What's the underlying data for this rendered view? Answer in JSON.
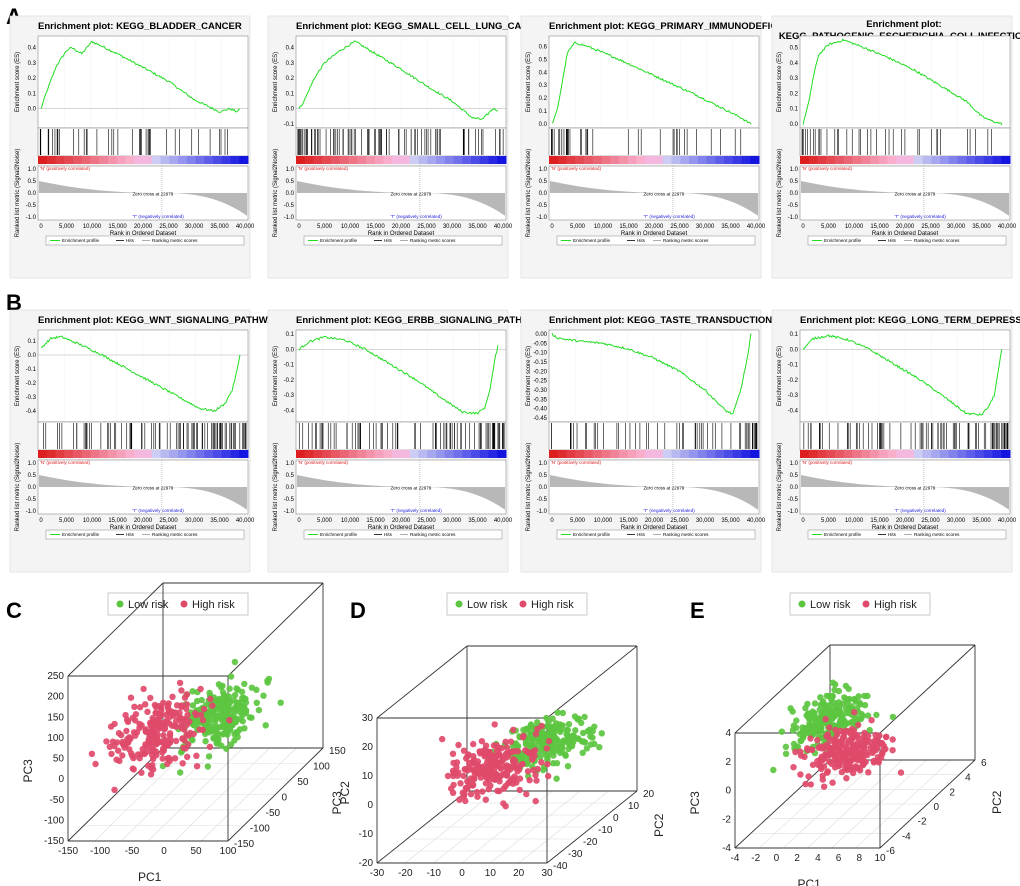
{
  "panels": {
    "A": {
      "letter": "A"
    },
    "B": {
      "letter": "B"
    },
    "C": {
      "letter": "C"
    },
    "D": {
      "letter": "D"
    },
    "E": {
      "letter": "E"
    }
  },
  "gsea_common": {
    "es_axis_label": "Enrichment score (ES)",
    "metric_axis_label": "Ranked list metric (Signal2Noise)",
    "x_axis_label": "Rank in Ordered Dataset",
    "x_ticks": [
      "0",
      "5,000",
      "10,000",
      "15,000",
      "20,000",
      "25,000",
      "30,000",
      "35,000",
      "40,000"
    ],
    "metric_ticks": [
      "1.0",
      "0.5",
      "0.0",
      "-0.5",
      "-1.0"
    ],
    "pos_label": "'N' (positively correlated)",
    "neg_label": "'T' (negatively correlated)",
    "zero_cross": "Zero cross at 22979",
    "legend": [
      "Enrichment profile",
      "Hits",
      "Ranking metric scores"
    ],
    "colors": {
      "es_line": "#22dd22",
      "hits": "#000000",
      "metric": "#b8b8b8",
      "pos": "#e02020",
      "neg": "#2020dd"
    }
  },
  "chart_data": [
    {
      "type": "line",
      "panel": "A",
      "title": "Enrichment plot: KEGG_BLADDER_CANCER",
      "ylim": [
        -0.1,
        0.45
      ],
      "y_ticks": [
        "0.4",
        "0.3",
        "0.2",
        "0.1",
        "0.0"
      ],
      "x": [
        0,
        1000,
        3000,
        5000,
        6000,
        8000,
        10000,
        15000,
        20000,
        25000,
        30000,
        35000,
        37000,
        38500,
        39000
      ],
      "values": [
        0.0,
        0.1,
        0.28,
        0.38,
        0.4,
        0.36,
        0.44,
        0.36,
        0.27,
        0.18,
        0.06,
        -0.02,
        0.0,
        -0.02,
        0.0
      ],
      "hits_density": "sparse"
    },
    {
      "type": "line",
      "panel": "A",
      "title": "Enrichment plot: KEGG_SMALL_CELL_LUNG_CANCER",
      "ylim": [
        -0.1,
        0.45
      ],
      "y_ticks": [
        "0.4",
        "0.3",
        "0.2",
        "0.1",
        "0.0",
        "-0.1"
      ],
      "x": [
        0,
        1000,
        3000,
        5000,
        8000,
        11000,
        15000,
        20000,
        25000,
        30000,
        34000,
        36000,
        38000,
        39000
      ],
      "values": [
        0.0,
        0.05,
        0.2,
        0.3,
        0.38,
        0.44,
        0.36,
        0.26,
        0.15,
        0.05,
        -0.06,
        -0.07,
        0.0,
        -0.01
      ],
      "hits_density": "dense"
    },
    {
      "type": "line",
      "panel": "A",
      "title": "Enrichment plot: KEGG_PRIMARY_IMMUNODEFICIENCY",
      "ylim": [
        0.0,
        0.65
      ],
      "y_ticks": [
        "0.6",
        "0.5",
        "0.4",
        "0.3",
        "0.2",
        "0.1",
        "0.0"
      ],
      "x": [
        0,
        1000,
        2000,
        3000,
        4500,
        7000,
        12000,
        17000,
        23000,
        28000,
        33000,
        37000,
        39000
      ],
      "values": [
        0.0,
        0.1,
        0.32,
        0.55,
        0.63,
        0.6,
        0.52,
        0.43,
        0.32,
        0.23,
        0.13,
        0.05,
        0.0
      ],
      "hits_density": "sparse"
    },
    {
      "type": "line",
      "panel": "A",
      "title": "Enrichment plot: KEGG_PATHOGENIC_ESCHERICHIA_COLI_INFECTION",
      "ylim": [
        0.0,
        0.55
      ],
      "y_ticks": [
        "0.5",
        "0.4",
        "0.3",
        "0.2",
        "0.1",
        "0.0"
      ],
      "x": [
        0,
        1000,
        2000,
        3000,
        5000,
        8000,
        12000,
        17000,
        22000,
        27000,
        32000,
        35000,
        37000,
        39000
      ],
      "values": [
        0.0,
        0.12,
        0.3,
        0.45,
        0.52,
        0.55,
        0.5,
        0.43,
        0.35,
        0.25,
        0.15,
        0.05,
        0.02,
        0.0
      ],
      "hits_density": "sparse"
    },
    {
      "type": "line",
      "panel": "B",
      "title": "Enrichment plot: KEGG_WNT_SIGNALING_PATHWAY",
      "ylim": [
        -0.45,
        0.15
      ],
      "y_ticks": [
        "0.1",
        "0.0",
        "-0.1",
        "-0.2",
        "-0.3",
        "-0.4"
      ],
      "x": [
        0,
        2000,
        4000,
        8000,
        12000,
        17000,
        22000,
        27000,
        31000,
        34000,
        36000,
        37500,
        38500,
        39000
      ],
      "values": [
        0.05,
        0.12,
        0.13,
        0.07,
        0.0,
        -0.1,
        -0.2,
        -0.3,
        -0.38,
        -0.4,
        -0.35,
        -0.25,
        -0.1,
        0.0
      ],
      "hits_density": "dense"
    },
    {
      "type": "line",
      "panel": "B",
      "title": "Enrichment plot: KEGG_ERBB_SIGNALING_PATHWAY",
      "ylim": [
        -0.45,
        0.1
      ],
      "y_ticks": [
        "0.1",
        "0.0",
        "-0.1",
        "-0.2",
        "-0.3",
        "-0.4"
      ],
      "x": [
        0,
        2000,
        5000,
        9000,
        13000,
        18000,
        23000,
        28000,
        32000,
        35000,
        36500,
        37500,
        38500,
        39000
      ],
      "values": [
        0.0,
        0.05,
        0.08,
        0.06,
        0.0,
        -0.1,
        -0.2,
        -0.32,
        -0.41,
        -0.42,
        -0.38,
        -0.25,
        -0.05,
        0.02
      ],
      "hits_density": "dense"
    },
    {
      "type": "line",
      "panel": "B",
      "title": "Enrichment plot: KEGG_TASTE_TRANSDUCTION",
      "ylim": [
        -0.45,
        0.0
      ],
      "y_ticks": [
        "0.00",
        "-0.05",
        "-0.10",
        "-0.15",
        "-0.20",
        "-0.25",
        "-0.30",
        "-0.35",
        "-0.40",
        "-0.45"
      ],
      "x": [
        0,
        1000,
        3000,
        6000,
        10000,
        15000,
        20000,
        25000,
        30000,
        34000,
        35500,
        37000,
        38500,
        39000
      ],
      "values": [
        0.0,
        -0.02,
        -0.03,
        -0.04,
        -0.05,
        -0.08,
        -0.13,
        -0.2,
        -0.3,
        -0.41,
        -0.43,
        -0.3,
        -0.1,
        0.0
      ],
      "hits_density": "medium"
    },
    {
      "type": "line",
      "panel": "B",
      "title": "Enrichment plot: KEGG_LONG_TERM_DEPRESSION",
      "ylim": [
        -0.45,
        0.1
      ],
      "y_ticks": [
        "0.1",
        "0.0",
        "-0.1",
        "-0.2",
        "-0.3",
        "-0.4"
      ],
      "x": [
        0,
        2000,
        5000,
        9000,
        13000,
        18000,
        23000,
        28000,
        32000,
        35000,
        36500,
        37500,
        38500,
        39000
      ],
      "values": [
        0.0,
        0.07,
        0.09,
        0.06,
        0.0,
        -0.1,
        -0.2,
        -0.32,
        -0.42,
        -0.43,
        -0.37,
        -0.3,
        -0.1,
        0.0
      ],
      "hits_density": "dense"
    },
    {
      "type": "scatter",
      "panel": "C",
      "legend": [
        "Low risk",
        "High risk"
      ],
      "colors": {
        "low": "#5cc540",
        "high": "#df4a6a"
      },
      "x_label": "PC1",
      "y_label": "PC2",
      "z_label": "PC3",
      "x_ticks": [
        "-150",
        "-100",
        "-50",
        "0",
        "50",
        "100"
      ],
      "y_ticks": [
        "-150",
        "-100",
        "-50",
        "0",
        "50",
        "100",
        "150"
      ],
      "z_ticks": [
        "-150",
        "-100",
        "-50",
        "0",
        "50",
        "100",
        "150",
        "200",
        "250"
      ],
      "groups": {
        "low_center": [
          0.62,
          0.55,
          0.45
        ],
        "high_center": [
          0.3,
          0.45,
          0.4
        ]
      }
    },
    {
      "type": "scatter",
      "panel": "D",
      "legend": [
        "Low risk",
        "High risk"
      ],
      "colors": {
        "low": "#5cc540",
        "high": "#df4a6a"
      },
      "x_label": "PC1",
      "y_label": "PC2",
      "z_label": "PC3",
      "x_ticks": [
        "-30",
        "-20",
        "-10",
        "0",
        "10",
        "20",
        "30"
      ],
      "y_ticks": [
        "-40",
        "-30",
        "-20",
        "-10",
        "0",
        "10",
        "20"
      ],
      "z_ticks": [
        "-20",
        "-10",
        "0",
        "10",
        "20",
        "30"
      ],
      "groups": {
        "low_center": [
          0.7,
          0.55,
          0.55
        ],
        "high_center": [
          0.45,
          0.45,
          0.45
        ]
      }
    },
    {
      "type": "scatter",
      "panel": "E",
      "legend": [
        "Low risk",
        "High risk"
      ],
      "colors": {
        "low": "#5cc540",
        "high": "#df4a6a"
      },
      "x_label": "PC1",
      "y_label": "PC2",
      "z_label": "PC3",
      "x_ticks": [
        "-4",
        "-2",
        "0",
        "2",
        "4",
        "6",
        "8",
        "10"
      ],
      "y_ticks": [
        "-6",
        "-4",
        "-2",
        "0",
        "2",
        "4",
        "6"
      ],
      "z_ticks": [
        "-4",
        "-2",
        "0",
        "2",
        "4"
      ],
      "groups": {
        "low_center": [
          0.25,
          0.6,
          0.65
        ],
        "high_center": [
          0.45,
          0.5,
          0.45
        ]
      }
    }
  ]
}
